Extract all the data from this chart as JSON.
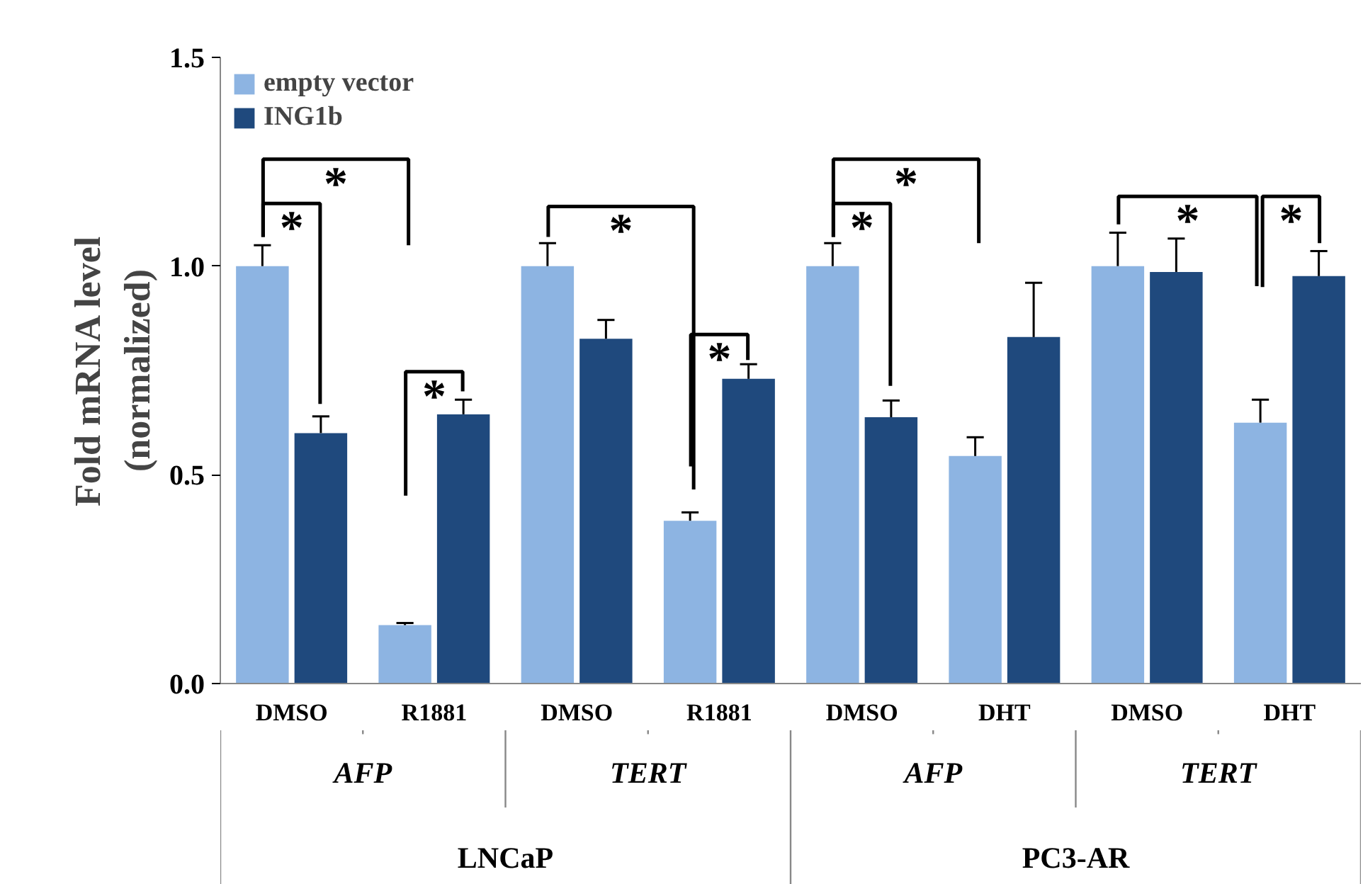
{
  "chart_data": {
    "type": "bar",
    "ylabel": "Fold mRNA level\n(normalized)",
    "categories": [
      "DMSO",
      "R1881",
      "DMSO",
      "R1881",
      "DMSO",
      "DHT",
      "DMSO",
      "DHT"
    ],
    "series": [
      {
        "name": "empty vector",
        "color": "#8db4e2",
        "values": [
          1.0,
          0.14,
          1.0,
          0.39,
          1.0,
          0.545,
          1.0,
          0.625
        ],
        "errors": [
          0.05,
          0.005,
          0.055,
          0.02,
          0.055,
          0.045,
          0.08,
          0.055
        ]
      },
      {
        "name": "ING1b",
        "color": "#1f497d",
        "values": [
          0.6,
          0.645,
          0.826,
          0.73,
          0.638,
          0.83,
          0.986,
          0.976
        ],
        "errors": [
          0.04,
          0.035,
          0.045,
          0.035,
          0.04,
          0.13,
          0.08,
          0.06
        ]
      }
    ],
    "ylim": [
      0,
      1.5
    ],
    "yticks": [
      {
        "value": 0,
        "label": "0.0"
      },
      {
        "value": 0.5,
        "label": "0.5"
      },
      {
        "value": 1,
        "label": "1.0"
      },
      {
        "value": 1.5,
        "label": "1.5"
      }
    ],
    "legend": "top left",
    "annotations": [
      "AFP",
      "TERT",
      "AFP",
      "TERT",
      "LNCaP",
      "PC3-AR",
      "*",
      "*",
      "*",
      "*",
      "*",
      "*",
      "*",
      "*",
      "*"
    ]
  }
}
